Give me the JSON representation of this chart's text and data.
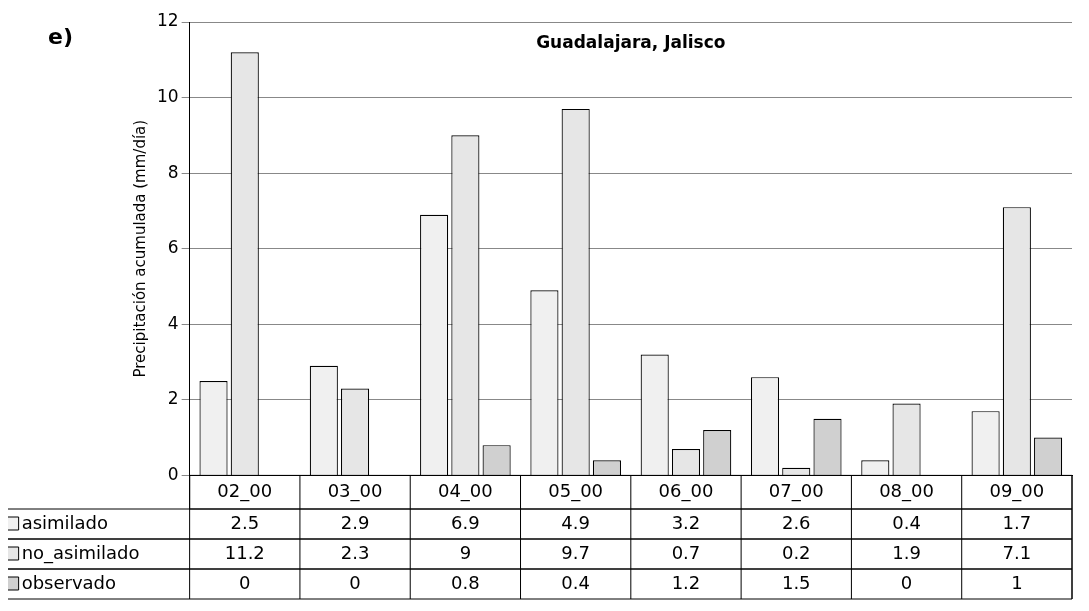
{
  "chart_data": {
    "type": "bar",
    "title": "Guadalajara, Jalisco",
    "ylabel": "Precipitación acumulada (mm/día)",
    "annotations": [
      "e)"
    ],
    "categories": [
      "02_00",
      "03_00",
      "04_00",
      "05_00",
      "06_00",
      "07_00",
      "08_00",
      "09_00"
    ],
    "series": [
      {
        "name": "asimilado",
        "color": "#f0f0f0",
        "values": [
          2.5,
          2.9,
          6.9,
          4.9,
          3.2,
          2.6,
          0.4,
          1.7
        ]
      },
      {
        "name": "no_asimilado",
        "color": "#e6e6e6",
        "values": [
          11.2,
          2.3,
          9,
          9.7,
          0.7,
          0.2,
          1.9,
          7.1
        ]
      },
      {
        "name": "observado",
        "color": "#d0d0d0",
        "values": [
          0,
          0,
          0.8,
          0.4,
          1.2,
          1.5,
          0,
          1
        ]
      }
    ],
    "ylim": [
      0,
      12
    ],
    "yticks": [
      0,
      2,
      4,
      6,
      8,
      10,
      12
    ],
    "grid": "y",
    "data_labels": true,
    "legend": "bottom left"
  }
}
